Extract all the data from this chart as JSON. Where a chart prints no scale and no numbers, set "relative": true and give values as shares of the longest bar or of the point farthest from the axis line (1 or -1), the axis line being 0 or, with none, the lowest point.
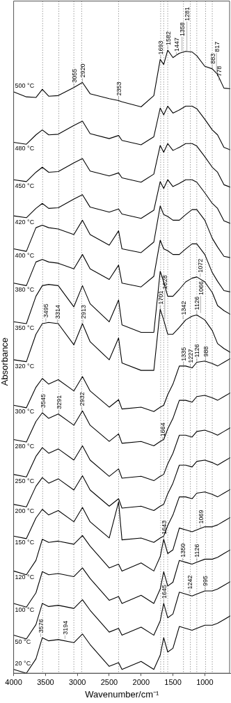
{
  "chart_data": {
    "type": "line",
    "relative": true,
    "xlabel": "Wavenumber/cm⁻¹",
    "ylabel": "Absorbance",
    "xlim": [
      4000,
      600
    ],
    "xticks": [
      4000,
      3500,
      3000,
      2500,
      2000,
      1500,
      1000
    ],
    "legend": false,
    "marker": "none",
    "line_style": "solid",
    "x": [
      4000,
      3800,
      3650,
      3550,
      3450,
      3300,
      3055,
      2920,
      2800,
      2500,
      2353,
      2300,
      2000,
      1800,
      1700,
      1645,
      1582,
      1500,
      1400,
      1300,
      1200,
      1126,
      1000,
      883,
      800,
      700,
      600
    ],
    "series": [
      {
        "name": "500 °C",
        "color": "#000000",
        "values": [
          0.933,
          0.925,
          0.924,
          0.937,
          0.926,
          0.927,
          0.94,
          0.948,
          0.93,
          0.922,
          0.919,
          0.917,
          0.909,
          0.927,
          0.985,
          0.977,
          1.0,
          0.988,
          0.995,
          0.998,
          0.997,
          0.991,
          0.974,
          0.97,
          0.961,
          0.939,
          0.938
        ]
      },
      {
        "name": "480 °C",
        "color": "#000000",
        "values": [
          0.852,
          0.849,
          0.864,
          0.872,
          0.864,
          0.865,
          0.879,
          0.886,
          0.866,
          0.858,
          0.863,
          0.855,
          0.848,
          0.861,
          0.907,
          0.896,
          0.91,
          0.899,
          0.904,
          0.91,
          0.91,
          0.906,
          0.889,
          0.872,
          0.864,
          0.844,
          0.84
        ]
      },
      {
        "name": "450 °C",
        "color": "#000000",
        "values": [
          0.792,
          0.789,
          0.804,
          0.812,
          0.804,
          0.805,
          0.819,
          0.826,
          0.806,
          0.798,
          0.803,
          0.795,
          0.788,
          0.801,
          0.847,
          0.836,
          0.85,
          0.839,
          0.844,
          0.85,
          0.85,
          0.846,
          0.829,
          0.812,
          0.804,
          0.784,
          0.78
        ]
      },
      {
        "name": "420 °C",
        "color": "#000000",
        "values": [
          0.734,
          0.731,
          0.746,
          0.754,
          0.746,
          0.747,
          0.761,
          0.768,
          0.748,
          0.74,
          0.745,
          0.737,
          0.73,
          0.743,
          0.789,
          0.778,
          0.792,
          0.781,
          0.786,
          0.792,
          0.792,
          0.788,
          0.771,
          0.754,
          0.746,
          0.726,
          0.722
        ]
      },
      {
        "name": "400 °C",
        "color": "#000000",
        "values": [
          0.681,
          0.677,
          0.715,
          0.719,
          0.715,
          0.713,
          0.704,
          0.727,
          0.704,
          0.687,
          0.71,
          0.681,
          0.675,
          0.692,
          0.75,
          0.736,
          0.733,
          0.727,
          0.727,
          0.736,
          0.744,
          0.744,
          0.727,
          0.698,
          0.684,
          0.669,
          0.667
        ]
      },
      {
        "name": "380 °C",
        "color": "#000000",
        "values": [
          0.626,
          0.622,
          0.66,
          0.664,
          0.66,
          0.658,
          0.649,
          0.672,
          0.649,
          0.632,
          0.655,
          0.626,
          0.62,
          0.637,
          0.695,
          0.681,
          0.678,
          0.672,
          0.672,
          0.681,
          0.689,
          0.689,
          0.672,
          0.643,
          0.629,
          0.614,
          0.612
        ]
      },
      {
        "name": "350 °C",
        "color": "#000000",
        "values": [
          0.564,
          0.561,
          0.605,
          0.622,
          0.624,
          0.622,
          0.588,
          0.622,
          0.593,
          0.564,
          0.599,
          0.559,
          0.547,
          0.547,
          0.645,
          0.628,
          0.605,
          0.605,
          0.616,
          0.628,
          0.634,
          0.636,
          0.628,
          0.611,
          0.59,
          0.582,
          0.576
        ]
      },
      {
        "name": "320 °C",
        "color": "#000000",
        "values": [
          0.503,
          0.5,
          0.544,
          0.561,
          0.563,
          0.561,
          0.527,
          0.561,
          0.532,
          0.503,
          0.538,
          0.498,
          0.486,
          0.486,
          0.584,
          0.567,
          0.544,
          0.544,
          0.555,
          0.567,
          0.573,
          0.575,
          0.567,
          0.55,
          0.529,
          0.521,
          0.515
        ]
      },
      {
        "name": "300 °C",
        "color": "#000000",
        "values": [
          0.43,
          0.426,
          0.459,
          0.473,
          0.464,
          0.471,
          0.453,
          0.476,
          0.453,
          0.427,
          0.439,
          0.424,
          0.427,
          0.42,
          0.427,
          0.43,
          0.447,
          0.464,
          0.493,
          0.493,
          0.49,
          0.499,
          0.501,
          0.497,
          0.493,
          0.499,
          0.505
        ]
      },
      {
        "name": "280 °C",
        "color": "#000000",
        "values": [
          0.375,
          0.371,
          0.404,
          0.418,
          0.409,
          0.416,
          0.398,
          0.421,
          0.398,
          0.372,
          0.384,
          0.369,
          0.372,
          0.365,
          0.372,
          0.375,
          0.392,
          0.409,
          0.438,
          0.438,
          0.435,
          0.444,
          0.446,
          0.442,
          0.438,
          0.444,
          0.45
        ]
      },
      {
        "name": "250 °C",
        "color": "#000000",
        "values": [
          0.319,
          0.315,
          0.348,
          0.362,
          0.353,
          0.36,
          0.342,
          0.365,
          0.342,
          0.316,
          0.328,
          0.313,
          0.316,
          0.309,
          0.316,
          0.319,
          0.336,
          0.353,
          0.382,
          0.382,
          0.379,
          0.388,
          0.39,
          0.386,
          0.382,
          0.388,
          0.394
        ]
      },
      {
        "name": "200 °C",
        "color": "#000000",
        "values": [
          0.271,
          0.267,
          0.3,
          0.314,
          0.305,
          0.312,
          0.294,
          0.317,
          0.294,
          0.268,
          0.28,
          0.265,
          0.268,
          0.261,
          0.268,
          0.271,
          0.288,
          0.305,
          0.334,
          0.334,
          0.331,
          0.34,
          0.342,
          0.338,
          0.334,
          0.34,
          0.346
        ]
      },
      {
        "name": "150 °C",
        "color": "#000000",
        "values": [
          0.22,
          0.216,
          0.249,
          0.263,
          0.254,
          0.261,
          0.243,
          0.266,
          0.243,
          0.217,
          0.275,
          0.214,
          0.217,
          0.21,
          0.217,
          0.22,
          0.237,
          0.254,
          0.283,
          0.283,
          0.28,
          0.289,
          0.291,
          0.287,
          0.283,
          0.289,
          0.295
        ]
      },
      {
        "name": "120 °C",
        "color": "#000000",
        "values": [
          0.164,
          0.158,
          0.181,
          0.215,
          0.21,
          0.212,
          0.207,
          0.221,
          0.204,
          0.169,
          0.175,
          0.164,
          0.177,
          0.164,
          0.187,
          0.215,
          0.192,
          0.198,
          0.233,
          0.23,
          0.227,
          0.23,
          0.235,
          0.235,
          0.238,
          0.244,
          0.25
        ]
      },
      {
        "name": "100 °C",
        "color": "#000000",
        "values": [
          0.112,
          0.106,
          0.129,
          0.163,
          0.158,
          0.16,
          0.155,
          0.169,
          0.152,
          0.117,
          0.123,
          0.112,
          0.125,
          0.112,
          0.135,
          0.163,
          0.14,
          0.146,
          0.181,
          0.178,
          0.175,
          0.178,
          0.183,
          0.183,
          0.186,
          0.192,
          0.198
        ]
      },
      {
        "name": "50 °C",
        "color": "#000000",
        "values": [
          0.061,
          0.055,
          0.078,
          0.112,
          0.107,
          0.109,
          0.104,
          0.118,
          0.101,
          0.066,
          0.072,
          0.061,
          0.074,
          0.061,
          0.084,
          0.112,
          0.089,
          0.095,
          0.13,
          0.127,
          0.124,
          0.127,
          0.132,
          0.132,
          0.135,
          0.141,
          0.147
        ]
      },
      {
        "name": "20 °C",
        "color": "#000000",
        "values": [
          0.006,
          0.0,
          0.023,
          0.057,
          0.052,
          0.054,
          0.049,
          0.063,
          0.046,
          0.011,
          0.017,
          0.006,
          0.019,
          0.006,
          0.029,
          0.057,
          0.034,
          0.04,
          0.075,
          0.072,
          0.069,
          0.072,
          0.077,
          0.077,
          0.08,
          0.086,
          0.092
        ]
      }
    ],
    "ref_lines": [
      {
        "axis": "x",
        "value": 3545,
        "line_style": "dotted",
        "color": "#888888"
      },
      {
        "axis": "x",
        "value": 3291,
        "line_style": "dotted",
        "color": "#888888"
      },
      {
        "axis": "x",
        "value": 3055,
        "line_style": "dotted",
        "color": "#888888"
      },
      {
        "axis": "x",
        "value": 2932,
        "line_style": "dotted",
        "color": "#888888"
      },
      {
        "axis": "x",
        "value": 2353,
        "line_style": "dotted",
        "color": "#888888"
      },
      {
        "axis": "x",
        "value": 1693,
        "line_style": "dotted",
        "color": "#888888"
      },
      {
        "axis": "x",
        "value": 1645,
        "line_style": "dotted",
        "color": "#888888"
      },
      {
        "axis": "x",
        "value": 1582,
        "line_style": "dotted",
        "color": "#888888"
      },
      {
        "axis": "x",
        "value": 1335,
        "line_style": "dotted",
        "color": "#888888"
      },
      {
        "axis": "x",
        "value": 1227,
        "line_style": "dotted",
        "color": "#888888"
      },
      {
        "axis": "x",
        "value": 1126,
        "line_style": "dotted",
        "color": "#888888"
      },
      {
        "axis": "x",
        "value": 988,
        "line_style": "dotted",
        "color": "#888888"
      },
      {
        "axis": "x",
        "value": 883,
        "line_style": "dotted",
        "color": "#888888"
      }
    ],
    "annotations": [
      {
        "text": "3055",
        "x": 3055,
        "y": 0.94
      },
      {
        "text": "2920",
        "x": 2920,
        "y": 0.948
      },
      {
        "text": "2353",
        "x": 2353,
        "y": 0.919
      },
      {
        "text": "1693",
        "x": 1693,
        "y": 0.985
      },
      {
        "text": "1582",
        "x": 1582,
        "y": 1.0
      },
      {
        "text": "1447",
        "x": 1447,
        "y": 0.99
      },
      {
        "text": "1358",
        "x": 1358,
        "y": 0.997
      },
      {
        "text": "1281",
        "x": 1281,
        "y": 0.998
      },
      {
        "text": "883",
        "x": 883,
        "y": 0.97
      },
      {
        "text": "817",
        "x": 817,
        "y": 0.961
      },
      {
        "text": "778",
        "x": 778,
        "y": 0.95
      },
      {
        "text": "1072",
        "x": 1072,
        "y": 0.635
      },
      {
        "text": "3495",
        "x": 3495,
        "y": 0.563
      },
      {
        "text": "3314",
        "x": 3314,
        "y": 0.561
      },
      {
        "text": "2913",
        "x": 2913,
        "y": 0.561
      },
      {
        "text": "1701",
        "x": 1701,
        "y": 0.584
      },
      {
        "text": "1628",
        "x": 1628,
        "y": 0.567
      },
      {
        "text": "1342",
        "x": 1342,
        "y": 0.567
      },
      {
        "text": "1126",
        "x": 1126,
        "y": 0.575
      },
      {
        "text": "1066",
        "x": 1066,
        "y": 0.577
      },
      {
        "text": "1335",
        "x": 1335,
        "y": 0.493
      },
      {
        "text": "1227",
        "x": 1227,
        "y": 0.49
      },
      {
        "text": "1126",
        "x": 1126,
        "y": 0.499
      },
      {
        "text": "988",
        "x": 988,
        "y": 0.5
      },
      {
        "text": "3545",
        "x": 3545,
        "y": 0.418
      },
      {
        "text": "3291",
        "x": 3291,
        "y": 0.416
      },
      {
        "text": "2932",
        "x": 2932,
        "y": 0.421
      },
      {
        "text": "1664",
        "x": 1664,
        "y": 0.372
      },
      {
        "text": "1643",
        "x": 1643,
        "y": 0.215
      },
      {
        "text": "1069",
        "x": 1069,
        "y": 0.232
      },
      {
        "text": "1350",
        "x": 1350,
        "y": 0.178
      },
      {
        "text": "1126",
        "x": 1126,
        "y": 0.178
      },
      {
        "text": "1645",
        "x": 1645,
        "y": 0.112
      },
      {
        "text": "1242",
        "x": 1242,
        "y": 0.127
      },
      {
        "text": "995",
        "x": 995,
        "y": 0.132
      },
      {
        "text": "3576",
        "x": 3576,
        "y": 0.057
      },
      {
        "text": "3194",
        "x": 3194,
        "y": 0.054
      }
    ]
  }
}
